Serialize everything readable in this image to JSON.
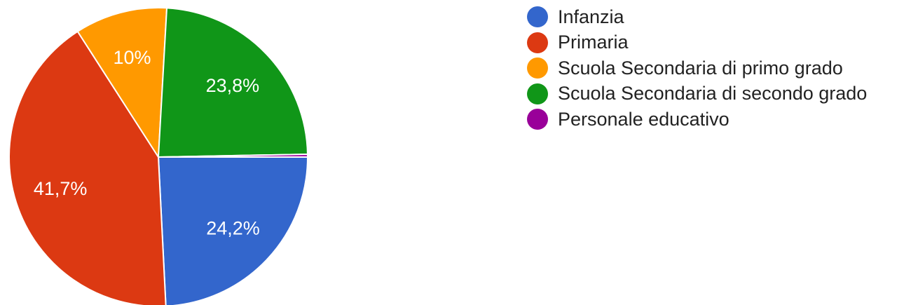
{
  "chart_data": {
    "type": "pie",
    "start_angle_deg": 90,
    "direction": "clockwise",
    "legend_position": "right",
    "colors": {
      "text": "#222222",
      "label": "#ffffff",
      "slice_border": "#ffffff"
    },
    "slices": [
      {
        "label": "Infanzia",
        "value": 24.2,
        "display": "24,2%",
        "color": "#3366cc"
      },
      {
        "label": "Primaria",
        "value": 41.7,
        "display": "41,7%",
        "color": "#dc3912"
      },
      {
        "label": "Scuola Secondaria di primo grado",
        "value": 10.0,
        "display": "10%",
        "color": "#ff9900"
      },
      {
        "label": "Scuola Secondaria di secondo grado",
        "value": 23.8,
        "display": "23,8%",
        "color": "#109618"
      },
      {
        "label": "Personale educativo",
        "value": 0.3,
        "display": "",
        "color": "#990099"
      }
    ]
  }
}
